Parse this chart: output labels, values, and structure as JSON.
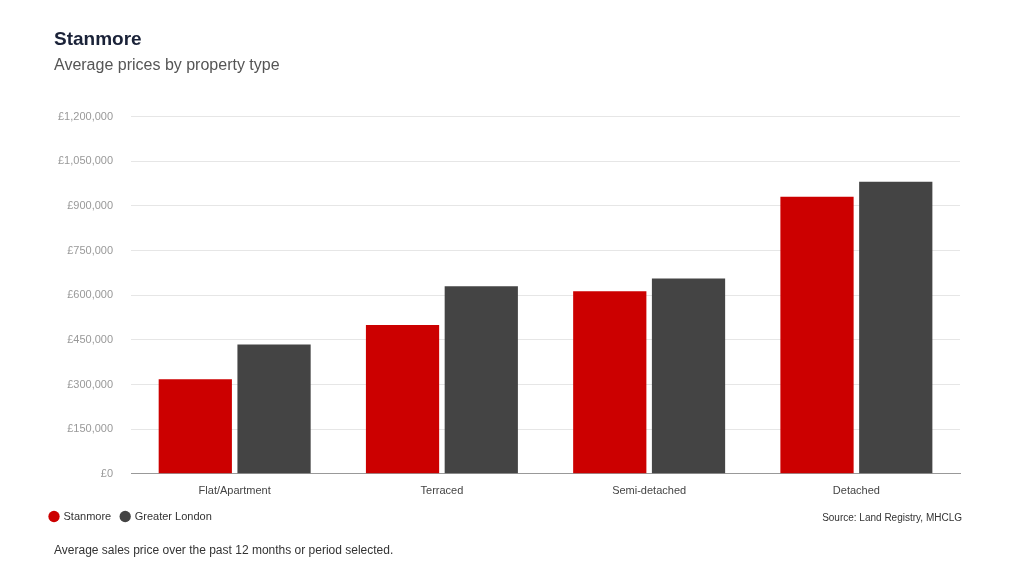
{
  "chart_data": {
    "type": "bar",
    "title": "Stanmore",
    "subtitle": "Average prices by property type",
    "categories": [
      "Flat/Apartment",
      "Terraced",
      "Semi-detached",
      "Detached"
    ],
    "series": [
      {
        "name": "Stanmore",
        "color": "#cc0000",
        "values": [
          318000,
          500000,
          613000,
          931000
        ]
      },
      {
        "name": "Greater London",
        "color": "#444444",
        "values": [
          434000,
          630000,
          656000,
          981000
        ]
      }
    ],
    "ylim": [
      0,
      1200000
    ],
    "yticks": [
      {
        "value": 0,
        "label": "£0"
      },
      {
        "value": 150000,
        "label": "£150,000"
      },
      {
        "value": 300000,
        "label": "£300,000"
      },
      {
        "value": 450000,
        "label": "£450,000"
      },
      {
        "value": 600000,
        "label": "£600,000"
      },
      {
        "value": 750000,
        "label": "£750,000"
      },
      {
        "value": 900000,
        "label": "£900,000"
      },
      {
        "value": 1050000,
        "label": "£1,050,000"
      },
      {
        "value": 1200000,
        "label": "£1,200,000"
      }
    ],
    "grid": "y",
    "legend": "bottom left",
    "annotations": [
      "Source: Land Registry, MHCLG",
      "Average sales price over the past 12 months or period selected."
    ]
  }
}
